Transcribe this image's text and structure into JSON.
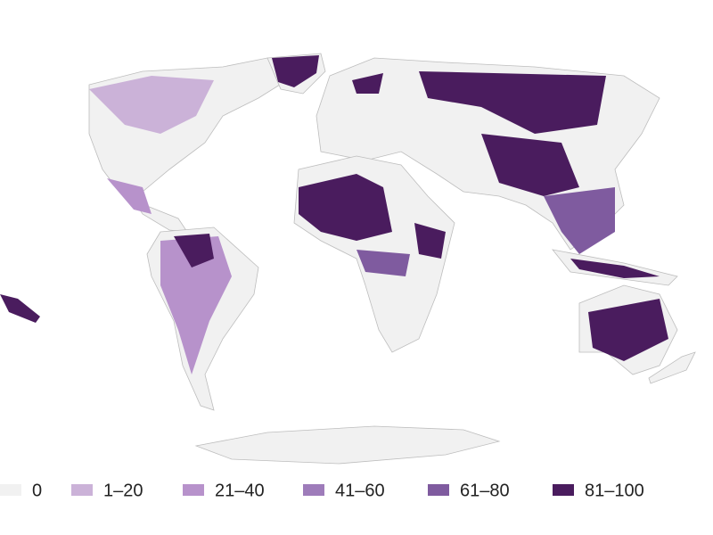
{
  "legend": {
    "items": [
      {
        "label": "0",
        "color": "#f1f1f1"
      },
      {
        "label": "1–20",
        "color": "#cbb2d8"
      },
      {
        "label": "21–40",
        "color": "#b792cb"
      },
      {
        "label": "41–60",
        "color": "#9e7cba"
      },
      {
        "label": "61–80",
        "color": "#7f5b9f"
      },
      {
        "label": "81–100",
        "color": "#4a1c5e"
      }
    ]
  }
}
